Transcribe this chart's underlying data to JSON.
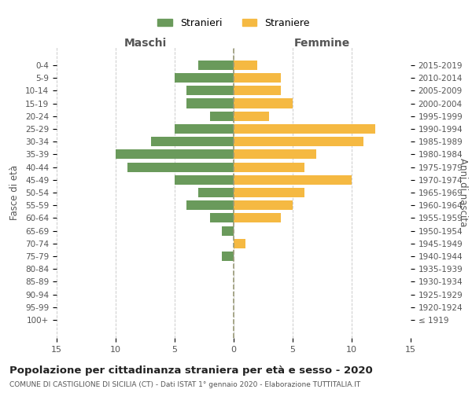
{
  "age_groups": [
    "100+",
    "95-99",
    "90-94",
    "85-89",
    "80-84",
    "75-79",
    "70-74",
    "65-69",
    "60-64",
    "55-59",
    "50-54",
    "45-49",
    "40-44",
    "35-39",
    "30-34",
    "25-29",
    "20-24",
    "15-19",
    "10-14",
    "5-9",
    "0-4"
  ],
  "birth_years": [
    "≤ 1919",
    "1920-1924",
    "1925-1929",
    "1930-1934",
    "1935-1939",
    "1940-1944",
    "1945-1949",
    "1950-1954",
    "1955-1959",
    "1960-1964",
    "1965-1969",
    "1970-1974",
    "1975-1979",
    "1980-1984",
    "1985-1989",
    "1990-1994",
    "1995-1999",
    "2000-2004",
    "2005-2009",
    "2010-2014",
    "2015-2019"
  ],
  "maschi": [
    0,
    0,
    0,
    0,
    0,
    1,
    0,
    1,
    2,
    4,
    3,
    5,
    9,
    10,
    7,
    5,
    2,
    4,
    4,
    5,
    3
  ],
  "femmine": [
    0,
    0,
    0,
    0,
    0,
    0,
    1,
    0,
    4,
    5,
    6,
    10,
    6,
    7,
    11,
    12,
    3,
    5,
    4,
    4,
    2
  ],
  "color_maschi": "#6a9a5b",
  "color_femmine": "#f5b942",
  "title": "Popolazione per cittadinanza straniera per età e sesso - 2020",
  "subtitle": "COMUNE DI CASTIGLIONE DI SICILIA (CT) - Dati ISTAT 1° gennaio 2020 - Elaborazione TUTTITALIA.IT",
  "xlabel_left": "Maschi",
  "xlabel_right": "Femmine",
  "ylabel_left": "Fasce di età",
  "ylabel_right": "Anni di nascita",
  "legend_maschi": "Stranieri",
  "legend_femmine": "Straniere",
  "xlim": 15,
  "background_color": "#ffffff",
  "grid_color": "#cccccc"
}
